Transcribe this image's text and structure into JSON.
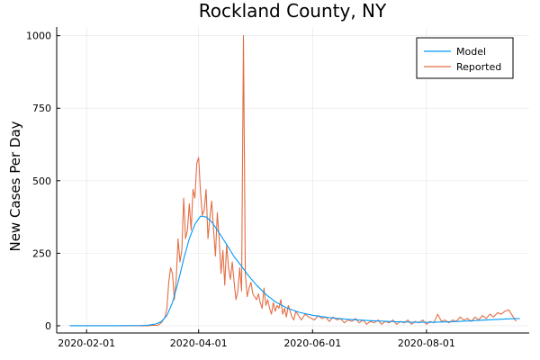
{
  "chart_data": {
    "type": "line",
    "title": "Rockland County, NY",
    "xlabel": "",
    "ylabel": "New Cases Per Day",
    "x_start": "2020-01-23",
    "x_range": [
      "2020-01-16",
      "2020-09-25"
    ],
    "ylim": [
      -25,
      1030
    ],
    "x_ticks": [
      {
        "date": "2020-02-01",
        "label": "2020-02-01"
      },
      {
        "date": "2020-04-01",
        "label": "2020-04-01"
      },
      {
        "date": "2020-06-01",
        "label": "2020-06-01"
      },
      {
        "date": "2020-08-01",
        "label": "2020-08-01"
      }
    ],
    "y_ticks": [
      {
        "value": 0,
        "label": "0"
      },
      {
        "value": 250,
        "label": "250"
      },
      {
        "value": 500,
        "label": "500"
      },
      {
        "value": 750,
        "label": "750"
      },
      {
        "value": 1000,
        "label": "1000"
      }
    ],
    "grid": true,
    "legend_position": "top-right",
    "series": [
      {
        "name": "Model",
        "color": "#009af9",
        "points": [
          [
            "2020-01-23",
            0
          ],
          [
            "2020-02-15",
            0
          ],
          [
            "2020-03-01",
            1
          ],
          [
            "2020-03-05",
            2
          ],
          [
            "2020-03-09",
            6
          ],
          [
            "2020-03-12",
            14
          ],
          [
            "2020-03-15",
            35
          ],
          [
            "2020-03-18",
            80
          ],
          [
            "2020-03-21",
            150
          ],
          [
            "2020-03-24",
            230
          ],
          [
            "2020-03-27",
            300
          ],
          [
            "2020-03-30",
            350
          ],
          [
            "2020-04-02",
            378
          ],
          [
            "2020-04-05",
            375
          ],
          [
            "2020-04-08",
            358
          ],
          [
            "2020-04-11",
            330
          ],
          [
            "2020-04-14",
            300
          ],
          [
            "2020-04-17",
            270
          ],
          [
            "2020-04-20",
            238
          ],
          [
            "2020-04-24",
            205
          ],
          [
            "2020-04-28",
            170
          ],
          [
            "2020-05-02",
            140
          ],
          [
            "2020-05-07",
            108
          ],
          [
            "2020-05-12",
            83
          ],
          [
            "2020-05-18",
            62
          ],
          [
            "2020-05-25",
            46
          ],
          [
            "2020-06-01",
            36
          ],
          [
            "2020-06-10",
            28
          ],
          [
            "2020-06-20",
            22
          ],
          [
            "2020-07-01",
            18
          ],
          [
            "2020-07-15",
            14
          ],
          [
            "2020-07-25",
            12
          ],
          [
            "2020-08-05",
            12
          ],
          [
            "2020-08-15",
            14
          ],
          [
            "2020-08-25",
            17
          ],
          [
            "2020-09-05",
            21
          ],
          [
            "2020-09-15",
            24
          ],
          [
            "2020-09-20",
            25
          ]
        ]
      },
      {
        "name": "Reported",
        "color": "#e26f46",
        "points": [
          [
            "2020-01-23",
            0
          ],
          [
            "2020-02-20",
            0
          ],
          [
            "2020-03-05",
            0
          ],
          [
            "2020-03-08",
            2
          ],
          [
            "2020-03-10",
            1
          ],
          [
            "2020-03-12",
            10
          ],
          [
            "2020-03-14",
            30
          ],
          [
            "2020-03-15",
            60
          ],
          [
            "2020-03-16",
            150
          ],
          [
            "2020-03-17",
            200
          ],
          [
            "2020-03-18",
            180
          ],
          [
            "2020-03-19",
            90
          ],
          [
            "2020-03-20",
            160
          ],
          [
            "2020-03-21",
            300
          ],
          [
            "2020-03-22",
            220
          ],
          [
            "2020-03-23",
            260
          ],
          [
            "2020-03-24",
            440
          ],
          [
            "2020-03-25",
            300
          ],
          [
            "2020-03-26",
            330
          ],
          [
            "2020-03-27",
            420
          ],
          [
            "2020-03-28",
            330
          ],
          [
            "2020-03-29",
            470
          ],
          [
            "2020-03-30",
            440
          ],
          [
            "2020-03-31",
            560
          ],
          [
            "2020-04-01",
            580
          ],
          [
            "2020-04-02",
            460
          ],
          [
            "2020-04-03",
            380
          ],
          [
            "2020-04-04",
            400
          ],
          [
            "2020-04-05",
            470
          ],
          [
            "2020-04-06",
            300
          ],
          [
            "2020-04-07",
            370
          ],
          [
            "2020-04-08",
            430
          ],
          [
            "2020-04-09",
            330
          ],
          [
            "2020-04-10",
            240
          ],
          [
            "2020-04-11",
            390
          ],
          [
            "2020-04-12",
            300
          ],
          [
            "2020-04-13",
            180
          ],
          [
            "2020-04-14",
            260
          ],
          [
            "2020-04-15",
            140
          ],
          [
            "2020-04-16",
            280
          ],
          [
            "2020-04-17",
            200
          ],
          [
            "2020-04-18",
            160
          ],
          [
            "2020-04-19",
            220
          ],
          [
            "2020-04-20",
            150
          ],
          [
            "2020-04-21",
            90
          ],
          [
            "2020-04-22",
            120
          ],
          [
            "2020-04-23",
            200
          ],
          [
            "2020-04-24",
            120
          ],
          [
            "2020-04-25",
            1000
          ],
          [
            "2020-04-26",
            180
          ],
          [
            "2020-04-27",
            100
          ],
          [
            "2020-04-28",
            130
          ],
          [
            "2020-04-29",
            150
          ],
          [
            "2020-04-30",
            110
          ],
          [
            "2020-05-01",
            100
          ],
          [
            "2020-05-02",
            90
          ],
          [
            "2020-05-03",
            110
          ],
          [
            "2020-05-04",
            80
          ],
          [
            "2020-05-05",
            60
          ],
          [
            "2020-05-06",
            130
          ],
          [
            "2020-05-07",
            70
          ],
          [
            "2020-05-08",
            90
          ],
          [
            "2020-05-09",
            60
          ],
          [
            "2020-05-10",
            40
          ],
          [
            "2020-05-11",
            80
          ],
          [
            "2020-05-12",
            50
          ],
          [
            "2020-05-13",
            70
          ],
          [
            "2020-05-14",
            60
          ],
          [
            "2020-05-15",
            90
          ],
          [
            "2020-05-16",
            40
          ],
          [
            "2020-05-17",
            60
          ],
          [
            "2020-05-18",
            30
          ],
          [
            "2020-05-19",
            70
          ],
          [
            "2020-05-20",
            50
          ],
          [
            "2020-05-21",
            30
          ],
          [
            "2020-05-22",
            20
          ],
          [
            "2020-05-23",
            50
          ],
          [
            "2020-05-24",
            40
          ],
          [
            "2020-05-26",
            20
          ],
          [
            "2020-05-28",
            40
          ],
          [
            "2020-05-30",
            30
          ],
          [
            "2020-06-02",
            20
          ],
          [
            "2020-06-04",
            35
          ],
          [
            "2020-06-06",
            25
          ],
          [
            "2020-06-08",
            30
          ],
          [
            "2020-06-10",
            15
          ],
          [
            "2020-06-12",
            30
          ],
          [
            "2020-06-14",
            20
          ],
          [
            "2020-06-16",
            25
          ],
          [
            "2020-06-18",
            10
          ],
          [
            "2020-06-20",
            20
          ],
          [
            "2020-06-22",
            15
          ],
          [
            "2020-06-24",
            25
          ],
          [
            "2020-06-26",
            10
          ],
          [
            "2020-06-28",
            20
          ],
          [
            "2020-06-30",
            5
          ],
          [
            "2020-07-02",
            15
          ],
          [
            "2020-07-04",
            10
          ],
          [
            "2020-07-06",
            20
          ],
          [
            "2020-07-08",
            5
          ],
          [
            "2020-07-10",
            15
          ],
          [
            "2020-07-12",
            10
          ],
          [
            "2020-07-14",
            20
          ],
          [
            "2020-07-16",
            5
          ],
          [
            "2020-07-18",
            15
          ],
          [
            "2020-07-20",
            10
          ],
          [
            "2020-07-22",
            20
          ],
          [
            "2020-07-24",
            5
          ],
          [
            "2020-07-26",
            15
          ],
          [
            "2020-07-28",
            10
          ],
          [
            "2020-07-30",
            20
          ],
          [
            "2020-08-01",
            5
          ],
          [
            "2020-08-03",
            15
          ],
          [
            "2020-08-05",
            10
          ],
          [
            "2020-08-07",
            40
          ],
          [
            "2020-08-09",
            15
          ],
          [
            "2020-08-11",
            20
          ],
          [
            "2020-08-13",
            10
          ],
          [
            "2020-08-15",
            20
          ],
          [
            "2020-08-17",
            15
          ],
          [
            "2020-08-19",
            30
          ],
          [
            "2020-08-21",
            20
          ],
          [
            "2020-08-23",
            25
          ],
          [
            "2020-08-25",
            15
          ],
          [
            "2020-08-27",
            30
          ],
          [
            "2020-08-29",
            20
          ],
          [
            "2020-08-31",
            35
          ],
          [
            "2020-09-02",
            25
          ],
          [
            "2020-09-04",
            40
          ],
          [
            "2020-09-06",
            30
          ],
          [
            "2020-09-08",
            45
          ],
          [
            "2020-09-10",
            40
          ],
          [
            "2020-09-12",
            50
          ],
          [
            "2020-09-14",
            55
          ],
          [
            "2020-09-16",
            35
          ],
          [
            "2020-09-18",
            15
          ]
        ]
      }
    ]
  }
}
